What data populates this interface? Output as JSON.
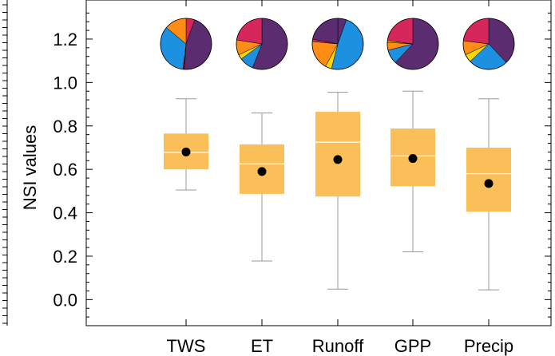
{
  "chart_data": {
    "type": "box",
    "ylabel": "NSI values",
    "ylim": [
      -0.12,
      1.38
    ],
    "yticks": [
      0.0,
      0.2,
      0.4,
      0.6,
      0.8,
      1.0,
      1.2
    ],
    "ytick_labels": [
      "0.0",
      "0.2",
      "0.4",
      "0.6",
      "0.8",
      "1.0",
      "1.2"
    ],
    "categories": [
      "TWS",
      "ET",
      "Runoff",
      "GPP",
      "Precip"
    ],
    "boxes": [
      {
        "category": "TWS",
        "whisker_low": 0.505,
        "q1": 0.6,
        "median": 0.678,
        "q3": 0.765,
        "whisker_high": 0.925,
        "mean": 0.68
      },
      {
        "category": "ET",
        "whisker_low": 0.178,
        "q1": 0.487,
        "median": 0.625,
        "q3": 0.715,
        "whisker_high": 0.86,
        "mean": 0.59
      },
      {
        "category": "Runoff",
        "whisker_low": 0.048,
        "q1": 0.475,
        "median": 0.725,
        "q3": 0.865,
        "whisker_high": 0.955,
        "mean": 0.645
      },
      {
        "category": "GPP",
        "whisker_low": 0.22,
        "q1": 0.522,
        "median": 0.662,
        "q3": 0.788,
        "whisker_high": 0.96,
        "mean": 0.65
      },
      {
        "category": "Precip",
        "whisker_low": 0.045,
        "q1": 0.405,
        "median": 0.58,
        "q3": 0.7,
        "whisker_high": 0.925,
        "mean": 0.535
      }
    ],
    "box_color": "#fbbf5a",
    "median_color": "#ffffff",
    "mean_marker_color": "#000000",
    "whisker_color": "#999999",
    "pie_insets": [
      {
        "category": "TWS",
        "slices": [
          {
            "fraction": 0.055,
            "color": "#d6275d"
          },
          {
            "fraction": 0.455,
            "color": "#5b2c6f"
          },
          {
            "fraction": 0.01,
            "color": "#8b1e1e"
          },
          {
            "fraction": 0.34,
            "color": "#1e90e0"
          },
          {
            "fraction": 0.14,
            "color": "#ff8c14"
          }
        ]
      },
      {
        "category": "ET",
        "slices": [
          {
            "fraction": 0.56,
            "color": "#5b2c6f"
          },
          {
            "fraction": 0.09,
            "color": "#1e90e0"
          },
          {
            "fraction": 0.03,
            "color": "#ffd700"
          },
          {
            "fraction": 0.095,
            "color": "#ff8c14"
          },
          {
            "fraction": 0.225,
            "color": "#d6275d"
          }
        ]
      },
      {
        "category": "Runoff",
        "slices": [
          {
            "fraction": 0.055,
            "color": "#5b2c6f"
          },
          {
            "fraction": 0.485,
            "color": "#1e90e0"
          },
          {
            "fraction": 0.04,
            "color": "#ffd700"
          },
          {
            "fraction": 0.185,
            "color": "#ff8c14"
          },
          {
            "fraction": 0.015,
            "color": "#d6275d"
          },
          {
            "fraction": 0.22,
            "color": "#5b2c6f"
          }
        ]
      },
      {
        "category": "GPP",
        "slices": [
          {
            "fraction": 0.62,
            "color": "#5b2c6f"
          },
          {
            "fraction": 0.09,
            "color": "#1e90e0"
          },
          {
            "fraction": 0.05,
            "color": "#ff8c14"
          },
          {
            "fraction": 0.01,
            "color": "#ffd700"
          },
          {
            "fraction": 0.23,
            "color": "#d6275d"
          }
        ]
      },
      {
        "category": "Precip",
        "slices": [
          {
            "fraction": 0.38,
            "color": "#5b2c6f"
          },
          {
            "fraction": 0.25,
            "color": "#1e90e0"
          },
          {
            "fraction": 0.05,
            "color": "#ffd700"
          },
          {
            "fraction": 0.09,
            "color": "#ff8c14"
          },
          {
            "fraction": 0.23,
            "color": "#d6275d"
          }
        ]
      }
    ]
  }
}
